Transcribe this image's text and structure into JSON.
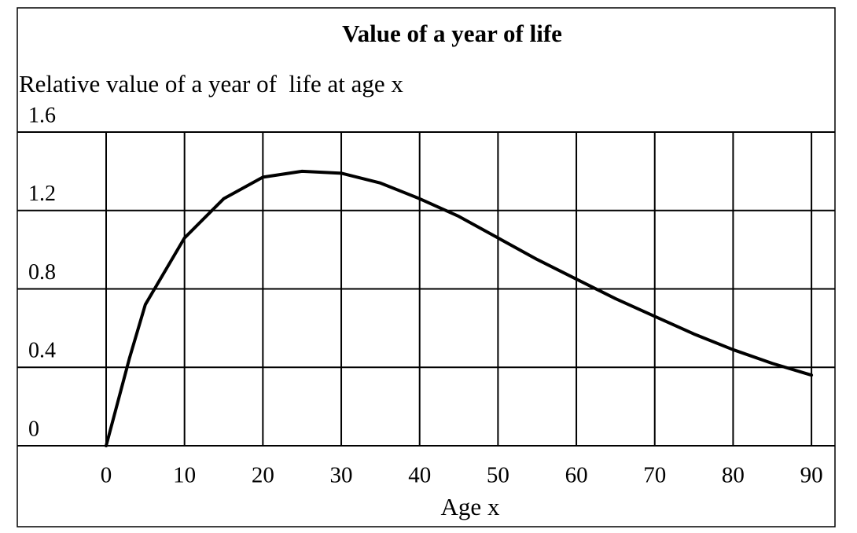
{
  "chart_data": {
    "type": "line",
    "title": "Value of a year of life",
    "y_label": "Relative value of a year of  life at age x",
    "x_label": "Age x",
    "x": [
      0,
      1,
      2,
      3,
      5,
      10,
      15,
      20,
      25,
      30,
      35,
      40,
      45,
      50,
      55,
      60,
      65,
      70,
      75,
      80,
      85,
      90
    ],
    "series": [
      {
        "name": null,
        "color": "#000000",
        "values": [
          0,
          0.15,
          0.3,
          0.45,
          0.72,
          1.06,
          1.26,
          1.37,
          1.4,
          1.39,
          1.34,
          1.26,
          1.17,
          1.06,
          0.95,
          0.85,
          0.75,
          0.66,
          0.57,
          0.49,
          0.42,
          0.36
        ]
      }
    ],
    "xlim": [
      0,
      93
    ],
    "ylim": [
      0,
      1.6
    ],
    "xticks": [
      0,
      10,
      20,
      30,
      40,
      50,
      60,
      70,
      80,
      90
    ],
    "yticks": [
      0,
      0.4,
      0.8,
      1.2,
      1.6
    ],
    "grid": true
  }
}
